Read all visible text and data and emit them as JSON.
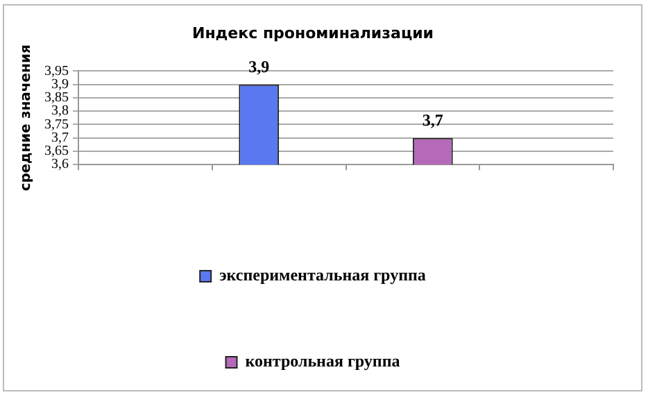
{
  "chart_data": {
    "type": "bar",
    "title": "Индекс прономинализации",
    "ylabel": "средние значения",
    "categories": [
      null,
      null,
      null,
      null
    ],
    "series": [
      {
        "name": "экспериментальная группа",
        "color": "#5a78f0",
        "values": [
          null,
          3.9,
          null,
          null
        ],
        "value_labels": [
          null,
          "3,9",
          null,
          null
        ]
      },
      {
        "name": "контрольная группа",
        "color": "#b46ab8",
        "values": [
          null,
          null,
          3.7,
          null
        ],
        "value_labels": [
          null,
          null,
          "3,7",
          null
        ]
      }
    ],
    "ylim": [
      3.6,
      3.95
    ],
    "yticks": [
      {
        "value": 3.6,
        "label": "3,6"
      },
      {
        "value": 3.65,
        "label": "3,65"
      },
      {
        "value": 3.7,
        "label": "3,7"
      },
      {
        "value": 3.75,
        "label": "3,75"
      },
      {
        "value": 3.8,
        "label": "3,8"
      },
      {
        "value": 3.85,
        "label": "3,85"
      },
      {
        "value": 3.9,
        "label": "3,9"
      },
      {
        "value": 3.95,
        "label": "3,95"
      }
    ],
    "grid": "y",
    "legend": "bottom"
  }
}
